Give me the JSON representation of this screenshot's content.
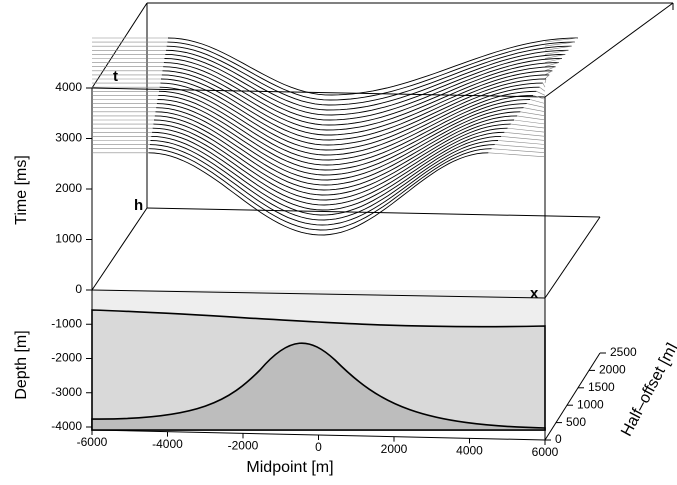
{
  "chart_data": {
    "type": "seismic-3d",
    "corner_labels": {
      "t": "t",
      "h": "h",
      "x": "x"
    },
    "time_axis": {
      "label": "Time [ms]",
      "lim": [
        0,
        4000
      ],
      "ticks": [
        0,
        1000,
        2000,
        3000,
        4000
      ]
    },
    "depth_axis": {
      "label": "Depth [m]",
      "lim": [
        0,
        -4000
      ],
      "ticks": [
        -1000,
        -2000,
        -3000,
        -4000
      ]
    },
    "midpoint_axis": {
      "label": "Midpoint [m]",
      "lim": [
        -6000,
        6000
      ],
      "ticks": [
        -6000,
        -4000,
        -2000,
        0,
        2000,
        4000,
        6000
      ]
    },
    "offset_axis": {
      "label": "Half–offset [m]",
      "lim": [
        0,
        2500
      ],
      "ticks": [
        0,
        500,
        1000,
        1500,
        2000,
        2500
      ]
    }
  }
}
